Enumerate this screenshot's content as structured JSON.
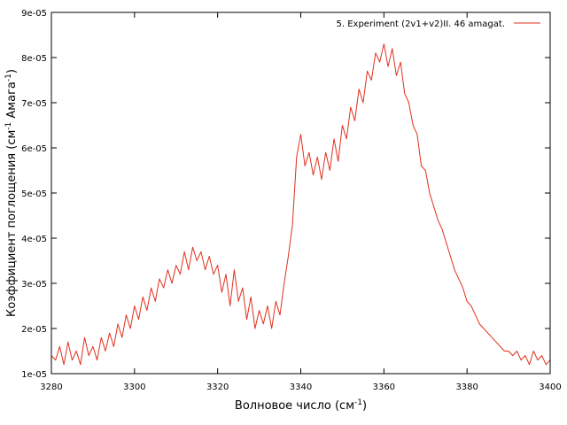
{
  "chart_data": {
    "type": "line",
    "xlabel": "Волновое число (см",
    "xlabel_sup": "-1",
    "xlabel_end": ")",
    "ylabel": "Коэффициент поглощения (см",
    "ylabel_sup1": "-1",
    "ylabel_mid": " Амага",
    "ylabel_sup2": "-1",
    "ylabel_end": ")",
    "xlim": [
      3280,
      3400
    ],
    "ylim": [
      1e-05,
      9e-05
    ],
    "x_ticks": [
      3280,
      3300,
      3320,
      3340,
      3360,
      3380,
      3400
    ],
    "x_tick_labels": [
      "3280",
      "3300",
      "3320",
      "3340",
      "3360",
      "3380",
      "3400"
    ],
    "y_ticks": [
      1e-05,
      2e-05,
      3e-05,
      4e-05,
      5e-05,
      6e-05,
      7e-05,
      8e-05,
      9e-05
    ],
    "y_tick_labels": [
      "1e-05",
      "2e-05",
      "3e-05",
      "4e-05",
      "5e-05",
      "6e-05",
      "7e-05",
      "8e-05",
      "9e-05"
    ],
    "grid": false,
    "legend_position": "top-right",
    "series": [
      {
        "name": "5. Experiment (2v1+v2)II. 46 amagat.",
        "color": "#e0301e",
        "x": [
          3280,
          3281,
          3282,
          3283,
          3284,
          3285,
          3286,
          3287,
          3288,
          3289,
          3290,
          3291,
          3292,
          3293,
          3294,
          3295,
          3296,
          3297,
          3298,
          3299,
          3300,
          3301,
          3302,
          3303,
          3304,
          3305,
          3306,
          3307,
          3308,
          3309,
          3310,
          3311,
          3312,
          3313,
          3314,
          3315,
          3316,
          3317,
          3318,
          3319,
          3320,
          3321,
          3322,
          3323,
          3324,
          3325,
          3326,
          3327,
          3328,
          3329,
          3330,
          3331,
          3332,
          3333,
          3334,
          3335,
          3336,
          3337,
          3338,
          3339,
          3340,
          3341,
          3342,
          3343,
          3344,
          3345,
          3346,
          3347,
          3348,
          3349,
          3350,
          3351,
          3352,
          3353,
          3354,
          3355,
          3356,
          3357,
          3358,
          3359,
          3360,
          3361,
          3362,
          3363,
          3364,
          3365,
          3366,
          3367,
          3368,
          3369,
          3370,
          3371,
          3372,
          3373,
          3374,
          3375,
          3376,
          3377,
          3378,
          3379,
          3380,
          3381,
          3382,
          3383,
          3384,
          3385,
          3386,
          3387,
          3388,
          3389,
          3390,
          3391,
          3392,
          3393,
          3394,
          3395,
          3396,
          3397,
          3398,
          3399,
          3400
        ],
        "y": [
          1.4e-05,
          1.3e-05,
          1.6e-05,
          1.2e-05,
          1.7e-05,
          1.3e-05,
          1.5e-05,
          1.2e-05,
          1.8e-05,
          1.4e-05,
          1.6e-05,
          1.3e-05,
          1.8e-05,
          1.5e-05,
          1.9e-05,
          1.6e-05,
          2.1e-05,
          1.8e-05,
          2.3e-05,
          2e-05,
          2.5e-05,
          2.2e-05,
          2.7e-05,
          2.4e-05,
          2.9e-05,
          2.6e-05,
          3.1e-05,
          2.9e-05,
          3.3e-05,
          3e-05,
          3.4e-05,
          3.2e-05,
          3.7e-05,
          3.3e-05,
          3.8e-05,
          3.5e-05,
          3.7e-05,
          3.3e-05,
          3.6e-05,
          3.2e-05,
          3.4e-05,
          2.8e-05,
          3.2e-05,
          2.5e-05,
          3.3e-05,
          2.6e-05,
          2.9e-05,
          2.2e-05,
          2.7e-05,
          2e-05,
          2.4e-05,
          2.1e-05,
          2.5e-05,
          2e-05,
          2.6e-05,
          2.3e-05,
          3e-05,
          3.6e-05,
          4.3e-05,
          5.8e-05,
          6.3e-05,
          5.6e-05,
          5.9e-05,
          5.4e-05,
          5.8e-05,
          5.3e-05,
          5.9e-05,
          5.5e-05,
          6.2e-05,
          5.7e-05,
          6.5e-05,
          6.2e-05,
          6.9e-05,
          6.6e-05,
          7.3e-05,
          7e-05,
          7.7e-05,
          7.5e-05,
          8.1e-05,
          7.9e-05,
          8.3e-05,
          7.8e-05,
          8.2e-05,
          7.6e-05,
          7.9e-05,
          7.2e-05,
          7e-05,
          6.5e-05,
          6.3e-05,
          5.6e-05,
          5.5e-05,
          5e-05,
          4.7e-05,
          4.4e-05,
          4.2e-05,
          3.9e-05,
          3.6e-05,
          3.3e-05,
          3.1e-05,
          2.9e-05,
          2.6e-05,
          2.5e-05,
          2.3e-05,
          2.1e-05,
          2e-05,
          1.9e-05,
          1.8e-05,
          1.7e-05,
          1.6e-05,
          1.5e-05,
          1.5e-05,
          1.4e-05,
          1.5e-05,
          1.3e-05,
          1.4e-05,
          1.2e-05,
          1.5e-05,
          1.3e-05,
          1.4e-05,
          1.2e-05,
          1.3e-05
        ]
      }
    ]
  }
}
